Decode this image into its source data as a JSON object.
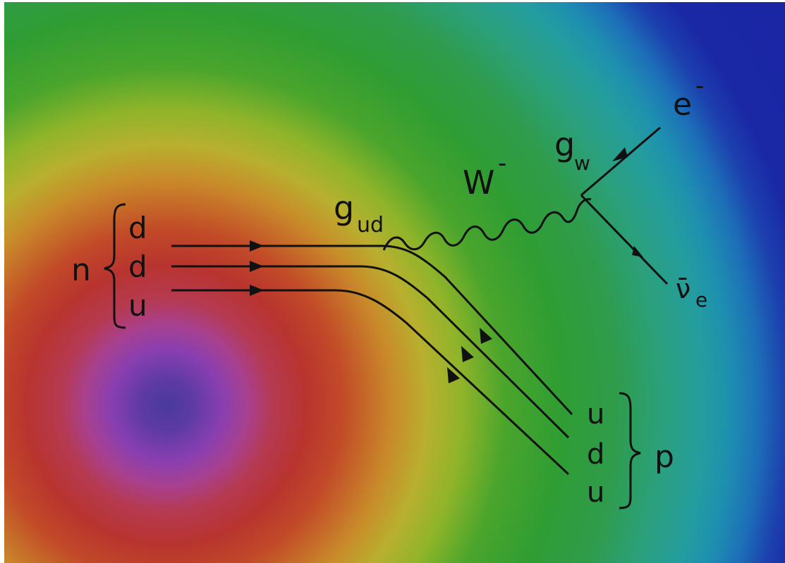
{
  "neutron": {
    "label": "n",
    "quarks": [
      "d",
      "d",
      "u"
    ]
  },
  "proton": {
    "label": "p",
    "quarks": [
      "u",
      "d",
      "u"
    ]
  },
  "couplings": {
    "quark_vertex": {
      "base": "g",
      "subscript": "ud"
    },
    "lepton_vertex": {
      "base": "g",
      "subscript": "w"
    }
  },
  "boson": {
    "base": "W",
    "superscript": "-"
  },
  "electron": {
    "base": "e",
    "superscript": "-"
  },
  "antineutrino": {
    "base": "ν̄",
    "subscript": "e"
  },
  "colors": {
    "line": "#111111",
    "center": "#4a3a9c",
    "edge": "#1a22a2"
  }
}
